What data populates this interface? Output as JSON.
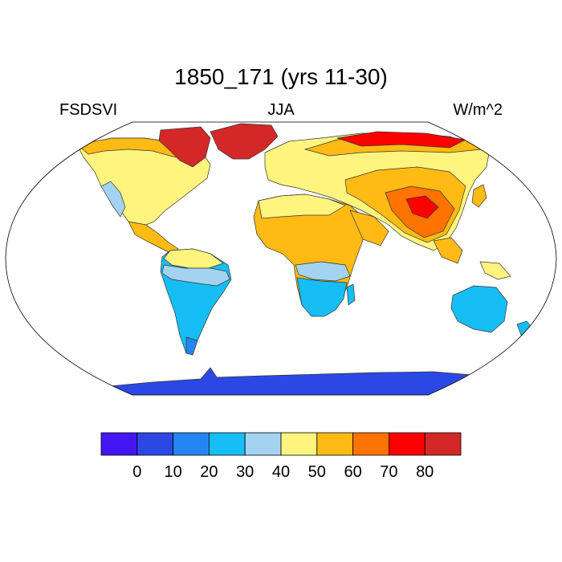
{
  "title": "1850_171 (yrs 11-30)",
  "left_label": "FSDSVI",
  "center_label": "JJA",
  "right_label": "W/m^2",
  "colorbar": {
    "colors": [
      "#4316f3",
      "#2c48e4",
      "#2386f3",
      "#16bef5",
      "#a4d3f1",
      "#fff47e",
      "#ffbb14",
      "#ff7300",
      "#ff0000",
      "#d32828"
    ],
    "tick_labels": [
      "0",
      "10",
      "20",
      "30",
      "40",
      "50",
      "60",
      "70",
      "80"
    ]
  },
  "palette": {
    "dark_blue": "#2c48e4",
    "mid_blue": "#2386f3",
    "sky_blue": "#16bef5",
    "light_blue": "#a4d3f1",
    "light_yellow": "#fff47e",
    "orange_yellow": "#ffbb14",
    "orange": "#ff7300",
    "red": "#ff0000",
    "dark_red": "#d32828"
  }
}
